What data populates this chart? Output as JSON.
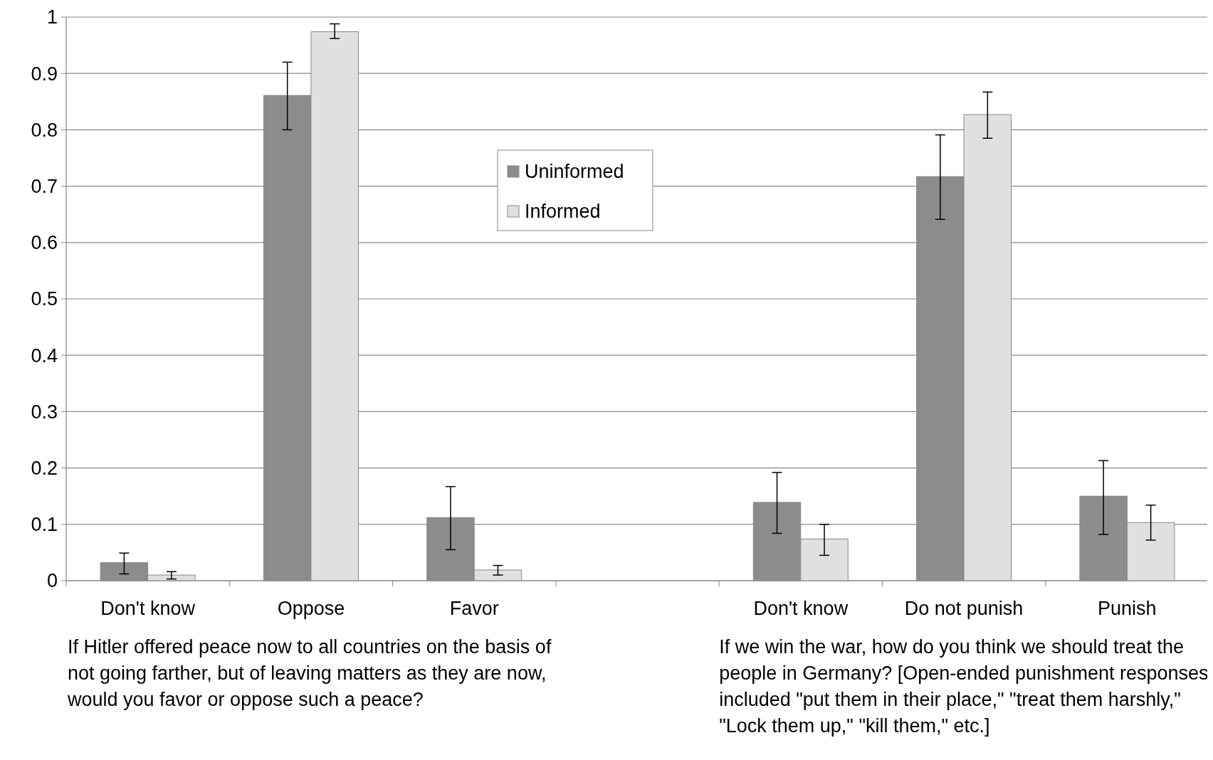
{
  "chart_data": {
    "type": "bar",
    "categories": [
      "Don't know",
      "Oppose",
      "Favor",
      null,
      "Don't know",
      "Do not punish",
      "Punish"
    ],
    "series": [
      {
        "name": "Uninformed",
        "color": "#8c8c8c",
        "values": [
          0.032,
          0.861,
          0.112,
          null,
          0.139,
          0.717,
          0.15
        ],
        "errors": [
          [
            0.012,
            0.049
          ],
          [
            0.8,
            0.92
          ],
          [
            0.055,
            0.167
          ],
          null,
          [
            0.084,
            0.192
          ],
          [
            0.641,
            0.791
          ],
          [
            0.082,
            0.213
          ]
        ]
      },
      {
        "name": "Informed",
        "color": "#e0e0e0",
        "values": [
          0.01,
          0.974,
          0.019,
          null,
          0.074,
          0.827,
          0.103
        ],
        "errors": [
          [
            0.003,
            0.016
          ],
          [
            0.962,
            0.988
          ],
          [
            0.01,
            0.027
          ],
          null,
          [
            0.045,
            0.1
          ],
          [
            0.785,
            0.867
          ],
          [
            0.072,
            0.134
          ]
        ]
      }
    ],
    "ylim": [
      0,
      1
    ],
    "yticks": [
      0,
      0.1,
      0.2,
      0.3,
      0.4,
      0.5,
      0.6,
      0.7,
      0.8,
      0.9,
      1
    ],
    "grid": "y",
    "legend": "top",
    "annotations": [
      "If Hitler offered peace now to all countries on the basis of not going farther, but of leaving matters as they are now, would you favor or oppose such a peace?",
      "If we win the war, how do you think we should treat the people in Germany? [Open-ended punishment responses included \"put them in their place,\" \"treat them harshly,\" \"Lock them up,\" \"kill them,\" etc.]"
    ]
  }
}
